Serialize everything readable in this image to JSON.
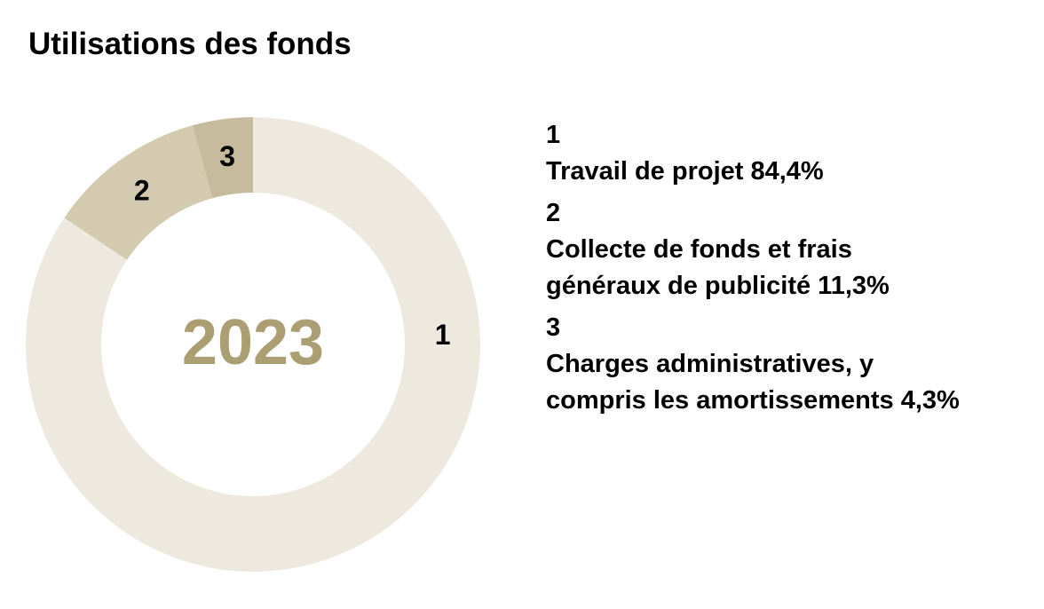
{
  "chart_data": {
    "type": "pie",
    "variant": "donut",
    "title": "Utilisations des fonds",
    "center_label": "2023",
    "slices": [
      {
        "id": "1",
        "label": "Travail de projet",
        "value": 84.4,
        "value_label": "84,4%",
        "color": "#ede9df"
      },
      {
        "id": "2",
        "label": "Collecte de fonds et frais généraux de publicité",
        "value": 11.3,
        "value_label": "11,3%",
        "color": "#d4cab0"
      },
      {
        "id": "3",
        "label": "Charges administratives, y compris les amortissements",
        "value": 4.3,
        "value_label": "4,3%",
        "color": "#c6bb9d"
      }
    ],
    "center_label_color": "#ab9e72",
    "legend_position": "right"
  },
  "legend": [
    {
      "id": "1",
      "text": "Travail de projet 84,4%"
    },
    {
      "id": "2",
      "text": "Collecte de fonds et frais généraux de publicité 11,3%"
    },
    {
      "id": "3",
      "text": "Charges administratives, y compris les amortissements 4,3%"
    }
  ]
}
